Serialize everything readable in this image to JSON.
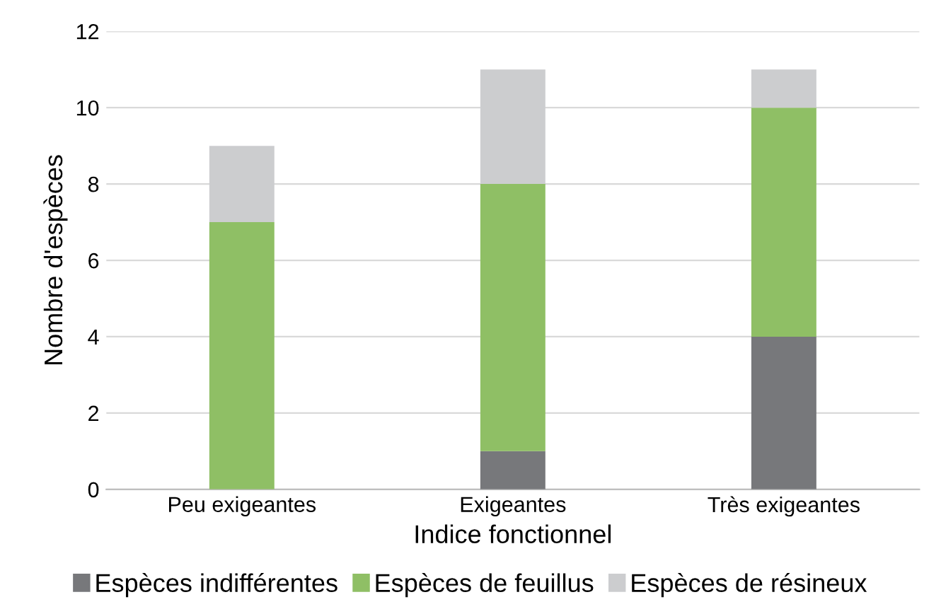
{
  "chart_data": {
    "type": "bar",
    "stacked": true,
    "xlabel": "Indice fonctionnel",
    "ylabel": "Nombre d'espèces",
    "categories": [
      "Peu exigeantes",
      "Exigeantes",
      "Très exigeantes"
    ],
    "series": [
      {
        "name": "Espèces indifférentes",
        "color": "#77787b",
        "values": [
          0,
          1,
          4
        ]
      },
      {
        "name": "Espèces de feuillus",
        "color": "#8fbf65",
        "values": [
          7,
          7,
          6
        ]
      },
      {
        "name": "Espèces de résineux",
        "color": "#cccdcf",
        "values": [
          2,
          3,
          1
        ]
      }
    ],
    "ylim": [
      0,
      12
    ],
    "yticks": [
      0,
      2,
      4,
      6,
      8,
      10,
      12
    ],
    "grid": "y",
    "legend": "bottom"
  }
}
